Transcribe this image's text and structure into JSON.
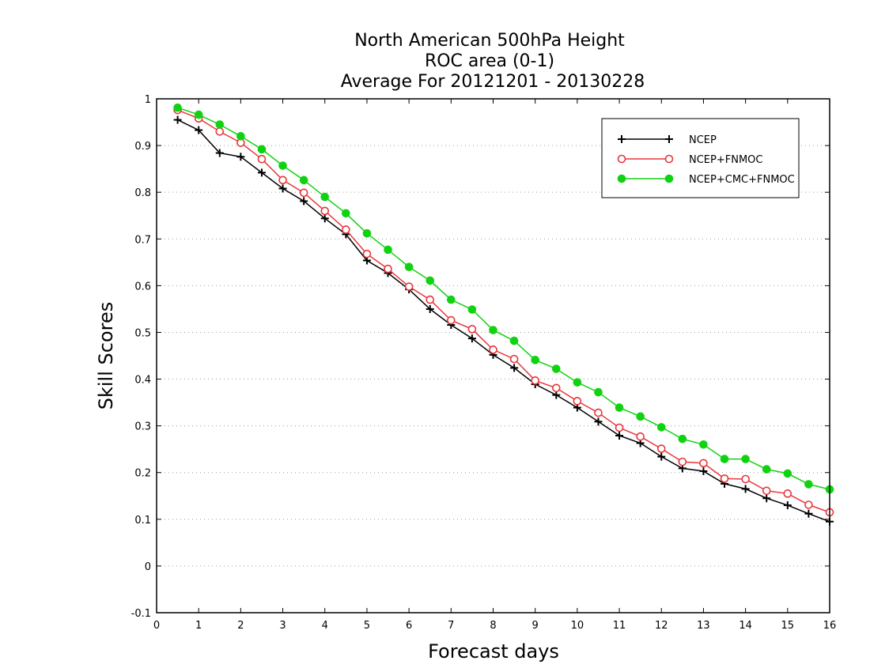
{
  "chart_data": {
    "type": "line",
    "title": [
      "North American 500hPa Height",
      "ROC area (0-1)",
      "Average For 20121201 - 20130228"
    ],
    "xlabel": "Forecast days",
    "ylabel": "Skill Scores",
    "xlim": [
      0,
      16
    ],
    "ylim": [
      -0.1,
      1
    ],
    "xticks": [
      0,
      1,
      2,
      3,
      4,
      5,
      6,
      7,
      8,
      9,
      10,
      11,
      12,
      13,
      14,
      15,
      16
    ],
    "yticks": [
      -0.1,
      0,
      0.1,
      0.2,
      0.3,
      0.4,
      0.5,
      0.6,
      0.7,
      0.8,
      0.9,
      1
    ],
    "ytick_labels": [
      "-0.1",
      "0",
      "0.1",
      "0.2",
      "0.3",
      "0.4",
      "0.5",
      "0.6",
      "0.7",
      "0.8",
      "0.9",
      "1"
    ],
    "grid": "horizontal dotted",
    "legend_position": "top-right",
    "x": [
      0.5,
      1,
      1.5,
      2,
      2.5,
      3,
      3.5,
      4,
      4.5,
      5,
      5.5,
      6,
      6.5,
      7,
      7.5,
      8,
      8.5,
      9,
      9.5,
      10,
      10.5,
      11,
      11.5,
      12,
      12.5,
      13,
      13.5,
      14,
      14.5,
      15,
      15.5,
      16
    ],
    "series": [
      {
        "name": "NCEP",
        "color": "#000000",
        "marker": "plus",
        "values": [
          0.955,
          0.933,
          0.884,
          0.876,
          0.842,
          0.808,
          0.781,
          0.744,
          0.71,
          0.654,
          0.627,
          0.592,
          0.55,
          0.516,
          0.487,
          0.452,
          0.424,
          0.389,
          0.366,
          0.339,
          0.309,
          0.279,
          0.263,
          0.234,
          0.209,
          0.203,
          0.176,
          0.165,
          0.145,
          0.13,
          0.112,
          0.095
        ]
      },
      {
        "name": "NCEP+FNMOC",
        "color": "#e8373b",
        "marker": "open-circle",
        "values": [
          0.976,
          0.958,
          0.93,
          0.906,
          0.871,
          0.826,
          0.799,
          0.76,
          0.72,
          0.668,
          0.636,
          0.598,
          0.57,
          0.526,
          0.507,
          0.463,
          0.443,
          0.397,
          0.381,
          0.353,
          0.328,
          0.296,
          0.277,
          0.251,
          0.223,
          0.22,
          0.187,
          0.186,
          0.161,
          0.155,
          0.131,
          0.115
        ]
      },
      {
        "name": "NCEP+CMC+FNMOC",
        "color": "#11d211",
        "marker": "filled-circle",
        "values": [
          0.981,
          0.966,
          0.945,
          0.92,
          0.892,
          0.857,
          0.826,
          0.79,
          0.755,
          0.712,
          0.677,
          0.64,
          0.611,
          0.57,
          0.549,
          0.505,
          0.482,
          0.441,
          0.422,
          0.393,
          0.372,
          0.339,
          0.32,
          0.297,
          0.272,
          0.26,
          0.229,
          0.229,
          0.207,
          0.198,
          0.175,
          0.164
        ]
      }
    ]
  }
}
